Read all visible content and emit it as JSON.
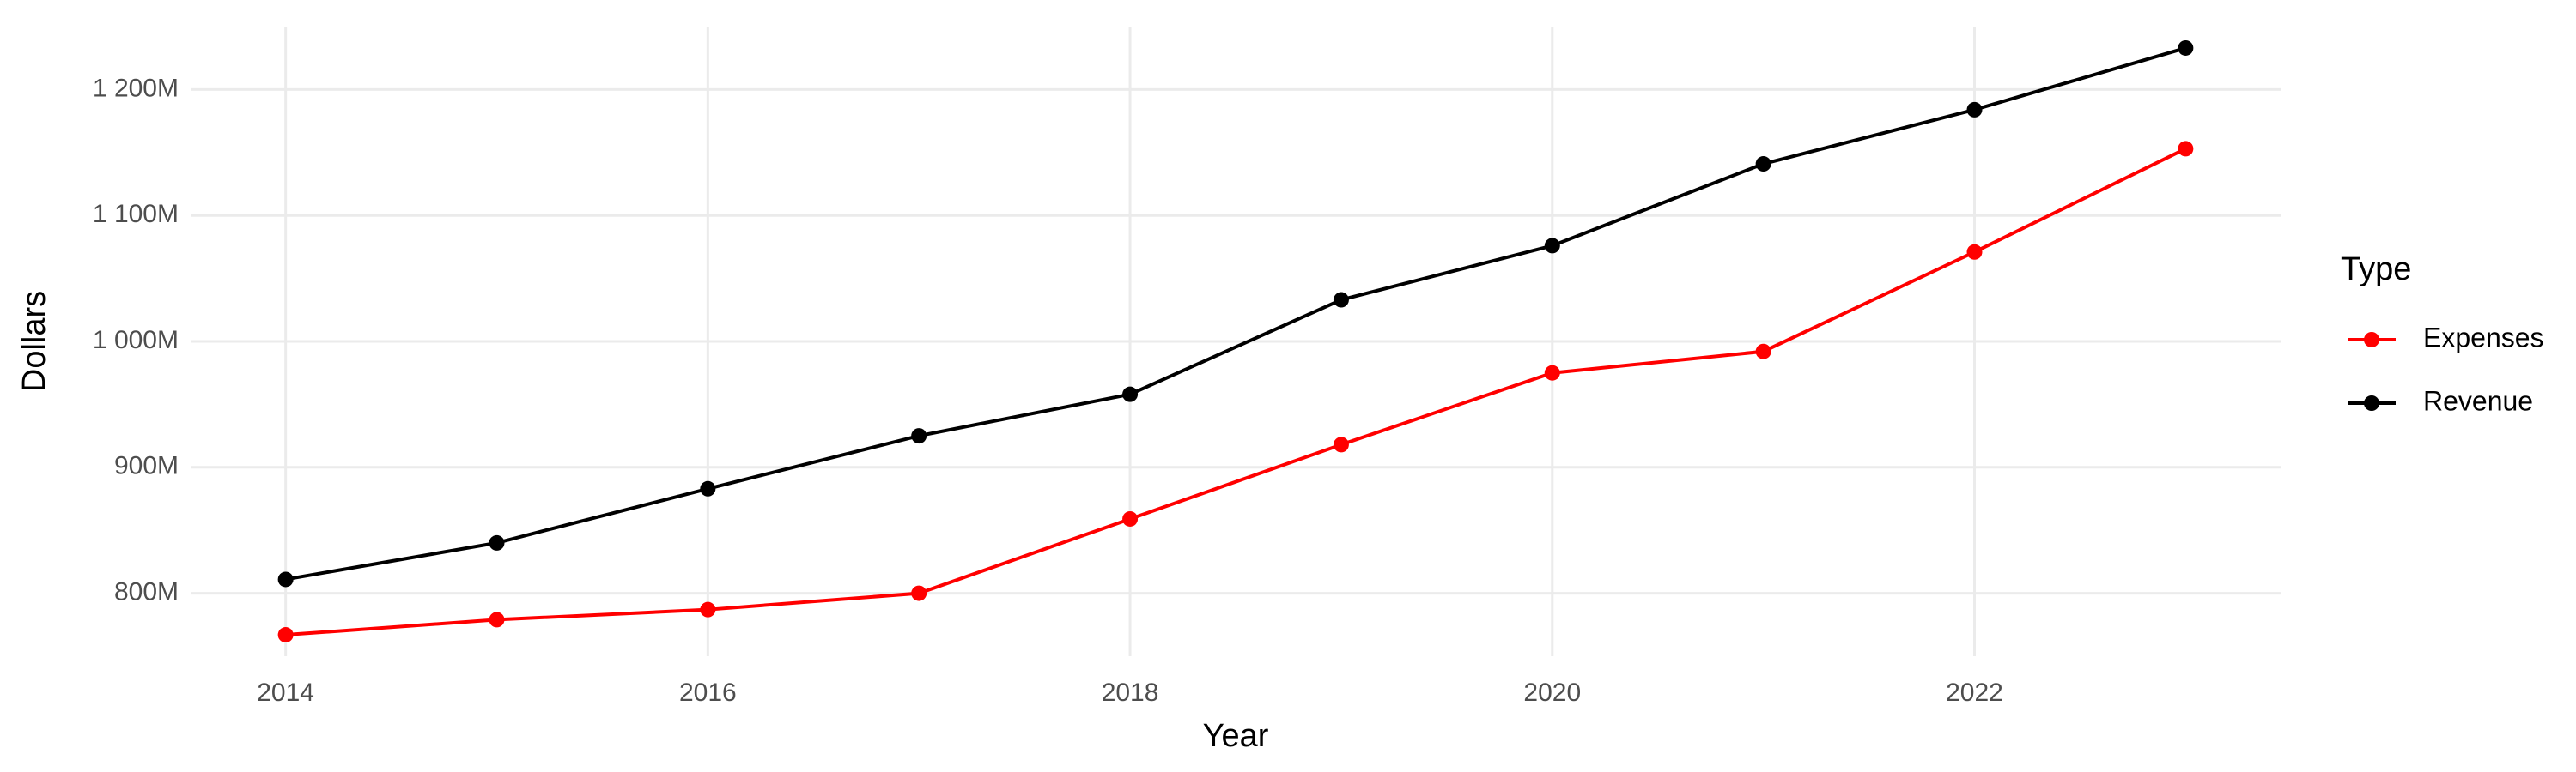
{
  "chart_data": {
    "type": "line",
    "x_label": "Year",
    "y_label": "Dollars",
    "legend_title": "Type",
    "x": [
      2014,
      2015,
      2016,
      2017,
      2018,
      2019,
      2020,
      2021,
      2022,
      2023
    ],
    "series": [
      {
        "name": "Expenses",
        "color": "#ff0000",
        "values": [
          767000000,
          779000000,
          787000000,
          800000000,
          859000000,
          918000000,
          975000000,
          992000000,
          1071000000,
          1153000000
        ]
      },
      {
        "name": "Revenue",
        "color": "#000000",
        "values": [
          811000000,
          840000000,
          883000000,
          925000000,
          958000000,
          1033000000,
          1076000000,
          1141000000,
          1184000000,
          1233000000
        ]
      }
    ],
    "xlim": [
      2013.55,
      2023.45
    ],
    "xticks": [
      2014,
      2016,
      2018,
      2020,
      2022
    ],
    "ylim": [
      750000000,
      1250000000
    ],
    "yticks": [
      {
        "value": 800000000,
        "label": "800M"
      },
      {
        "value": 900000000,
        "label": "900M"
      },
      {
        "value": 1000000000,
        "label": "1 000M"
      },
      {
        "value": 1100000000,
        "label": "1 100M"
      },
      {
        "value": 1200000000,
        "label": "1 200M"
      }
    ],
    "grid": true,
    "legend_position": "right"
  }
}
